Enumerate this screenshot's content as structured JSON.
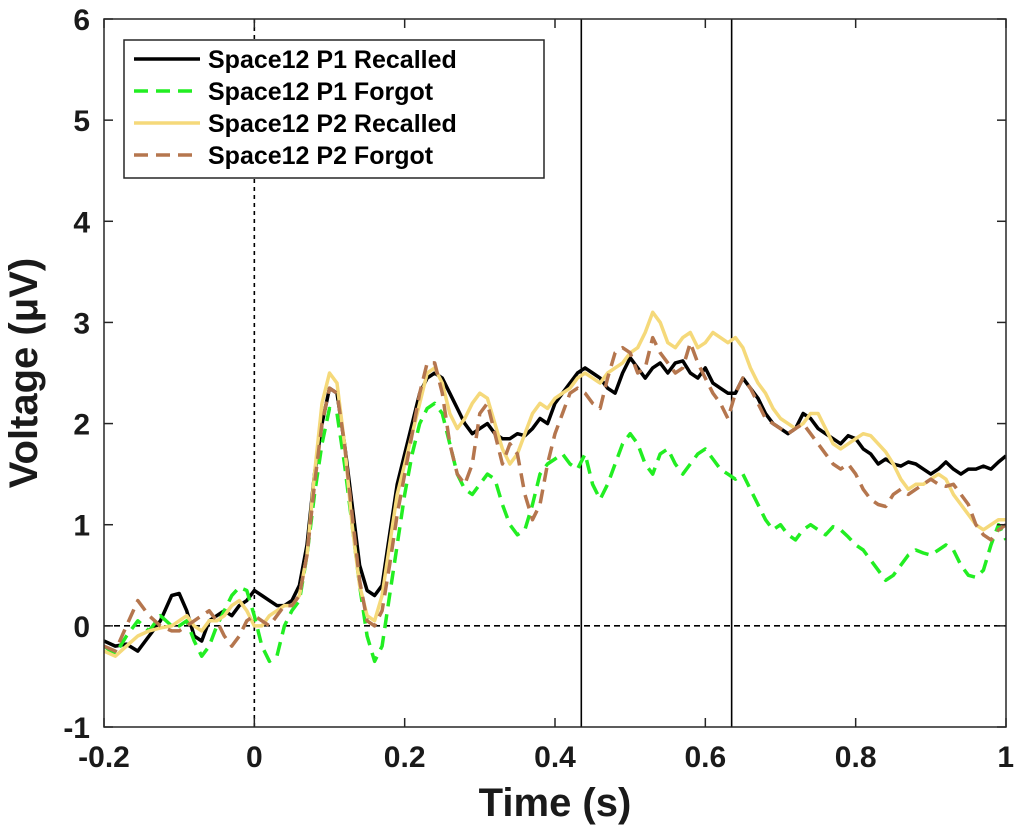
{
  "chart_data": {
    "type": "line",
    "title": "",
    "xlabel": "Time (s)",
    "ylabel": "Voltage (μV)",
    "xlim": [
      -0.2,
      1.0
    ],
    "ylim": [
      -1,
      6
    ],
    "xticks": [
      -0.2,
      0,
      0.2,
      0.4,
      0.6,
      0.8,
      1
    ],
    "xtick_labels": [
      "-0.2",
      "0",
      "0.2",
      "0.4",
      "0.6",
      "0.8",
      "1"
    ],
    "yticks": [
      -1,
      0,
      1,
      2,
      3,
      4,
      5,
      6
    ],
    "ytick_labels": [
      "-1",
      "0",
      "1",
      "2",
      "3",
      "4",
      "5",
      "6"
    ],
    "grid": false,
    "legend_position": "top-left",
    "reference_lines": [
      {
        "orientation": "vertical",
        "value": 0,
        "style": "dotted",
        "color": "#000000"
      },
      {
        "orientation": "horizontal",
        "value": 0,
        "style": "dashed",
        "color": "#000000"
      },
      {
        "orientation": "vertical",
        "value": 0.435,
        "style": "solid",
        "color": "#000000"
      },
      {
        "orientation": "vertical",
        "value": 0.635,
        "style": "solid",
        "color": "#000000"
      }
    ],
    "series": [
      {
        "name": "Space12 P1 Recalled",
        "color": "#000000",
        "dash": "solid",
        "x": [
          -0.2,
          -0.185,
          -0.17,
          -0.155,
          -0.14,
          -0.125,
          -0.11,
          -0.1,
          -0.09,
          -0.08,
          -0.07,
          -0.06,
          -0.05,
          -0.04,
          -0.03,
          -0.02,
          -0.01,
          0,
          0.01,
          0.02,
          0.03,
          0.04,
          0.05,
          0.06,
          0.07,
          0.08,
          0.09,
          0.1,
          0.11,
          0.12,
          0.13,
          0.14,
          0.15,
          0.16,
          0.17,
          0.18,
          0.19,
          0.2,
          0.21,
          0.22,
          0.23,
          0.24,
          0.25,
          0.26,
          0.27,
          0.28,
          0.29,
          0.3,
          0.31,
          0.32,
          0.33,
          0.34,
          0.35,
          0.36,
          0.37,
          0.38,
          0.39,
          0.4,
          0.41,
          0.42,
          0.43,
          0.44,
          0.45,
          0.46,
          0.47,
          0.48,
          0.49,
          0.5,
          0.51,
          0.52,
          0.53,
          0.54,
          0.55,
          0.56,
          0.57,
          0.58,
          0.59,
          0.6,
          0.61,
          0.62,
          0.63,
          0.64,
          0.65,
          0.66,
          0.67,
          0.68,
          0.69,
          0.7,
          0.71,
          0.72,
          0.73,
          0.74,
          0.75,
          0.76,
          0.77,
          0.78,
          0.79,
          0.8,
          0.81,
          0.82,
          0.83,
          0.84,
          0.85,
          0.86,
          0.87,
          0.88,
          0.89,
          0.9,
          0.91,
          0.92,
          0.93,
          0.94,
          0.95,
          0.96,
          0.97,
          0.98,
          0.99,
          1.0
        ],
        "y": [
          -0.15,
          -0.2,
          -0.18,
          -0.25,
          -0.1,
          0.05,
          0.3,
          0.32,
          0.15,
          -0.1,
          -0.15,
          0.05,
          0.1,
          0.15,
          0.1,
          0.2,
          0.25,
          0.35,
          0.3,
          0.25,
          0.2,
          0.2,
          0.25,
          0.4,
          0.8,
          1.5,
          2.0,
          2.35,
          2.3,
          1.8,
          1.2,
          0.6,
          0.35,
          0.3,
          0.4,
          0.9,
          1.4,
          1.7,
          2.0,
          2.3,
          2.45,
          2.5,
          2.45,
          2.3,
          2.15,
          2.0,
          1.9,
          1.95,
          2.0,
          1.9,
          1.85,
          1.85,
          1.9,
          1.88,
          1.95,
          2.05,
          2.0,
          2.2,
          2.3,
          2.4,
          2.5,
          2.55,
          2.5,
          2.45,
          2.35,
          2.3,
          2.5,
          2.65,
          2.55,
          2.45,
          2.55,
          2.6,
          2.5,
          2.6,
          2.62,
          2.5,
          2.45,
          2.55,
          2.4,
          2.35,
          2.3,
          2.3,
          2.45,
          2.35,
          2.25,
          2.1,
          2.0,
          1.95,
          1.9,
          1.95,
          2.1,
          2.05,
          1.95,
          1.9,
          1.85,
          1.8,
          1.88,
          1.85,
          1.75,
          1.7,
          1.6,
          1.65,
          1.6,
          1.58,
          1.62,
          1.6,
          1.55,
          1.5,
          1.55,
          1.62,
          1.55,
          1.5,
          1.55,
          1.55,
          1.58,
          1.55,
          1.62,
          1.68
        ]
      },
      {
        "name": "Space12 P1 Forgot",
        "color": "#22ee22",
        "dash": "dashed",
        "x": [
          -0.2,
          -0.185,
          -0.17,
          -0.155,
          -0.14,
          -0.125,
          -0.11,
          -0.1,
          -0.09,
          -0.08,
          -0.07,
          -0.06,
          -0.05,
          -0.04,
          -0.03,
          -0.02,
          -0.01,
          0,
          0.01,
          0.02,
          0.03,
          0.04,
          0.05,
          0.06,
          0.07,
          0.08,
          0.09,
          0.1,
          0.11,
          0.12,
          0.13,
          0.14,
          0.15,
          0.16,
          0.17,
          0.18,
          0.19,
          0.2,
          0.21,
          0.22,
          0.23,
          0.24,
          0.25,
          0.26,
          0.27,
          0.28,
          0.29,
          0.3,
          0.31,
          0.32,
          0.33,
          0.34,
          0.35,
          0.36,
          0.37,
          0.38,
          0.39,
          0.4,
          0.41,
          0.42,
          0.43,
          0.44,
          0.45,
          0.46,
          0.47,
          0.48,
          0.49,
          0.5,
          0.51,
          0.52,
          0.53,
          0.54,
          0.55,
          0.56,
          0.57,
          0.58,
          0.59,
          0.6,
          0.61,
          0.62,
          0.63,
          0.64,
          0.65,
          0.66,
          0.67,
          0.68,
          0.69,
          0.7,
          0.71,
          0.72,
          0.73,
          0.74,
          0.75,
          0.76,
          0.77,
          0.78,
          0.79,
          0.8,
          0.81,
          0.82,
          0.83,
          0.84,
          0.85,
          0.86,
          0.87,
          0.88,
          0.89,
          0.9,
          0.91,
          0.92,
          0.93,
          0.94,
          0.95,
          0.96,
          0.97,
          0.98,
          0.99,
          1.0
        ],
        "y": [
          -0.2,
          -0.28,
          -0.1,
          0.05,
          -0.05,
          0.1,
          0.0,
          0.0,
          0.05,
          -0.15,
          -0.3,
          -0.2,
          0.0,
          0.15,
          0.3,
          0.38,
          0.35,
          0.1,
          -0.2,
          -0.35,
          -0.3,
          0.0,
          0.15,
          0.25,
          0.7,
          1.3,
          1.8,
          2.15,
          2.1,
          1.6,
          1.0,
          0.4,
          -0.1,
          -0.35,
          -0.2,
          0.3,
          0.8,
          1.3,
          1.7,
          2.0,
          2.15,
          2.2,
          2.1,
          1.8,
          1.5,
          1.35,
          1.3,
          1.4,
          1.5,
          1.45,
          1.2,
          1.0,
          0.9,
          0.95,
          1.2,
          1.5,
          1.6,
          1.65,
          1.7,
          1.6,
          1.55,
          1.7,
          1.4,
          1.25,
          1.4,
          1.6,
          1.8,
          1.9,
          1.8,
          1.6,
          1.5,
          1.7,
          1.75,
          1.6,
          1.5,
          1.6,
          1.7,
          1.75,
          1.65,
          1.55,
          1.5,
          1.45,
          1.5,
          1.35,
          1.2,
          1.05,
          0.95,
          1.0,
          0.9,
          0.85,
          0.95,
          1.0,
          0.95,
          0.9,
          0.98,
          0.95,
          0.88,
          0.8,
          0.75,
          0.65,
          0.55,
          0.45,
          0.5,
          0.6,
          0.7,
          0.75,
          0.72,
          0.7,
          0.75,
          0.8,
          0.75,
          0.6,
          0.5,
          0.48,
          0.55,
          0.8,
          1.0,
          0.85
        ]
      },
      {
        "name": "Space12 P2 Recalled",
        "color": "#f5d97a",
        "dash": "solid",
        "x": [
          -0.2,
          -0.185,
          -0.17,
          -0.155,
          -0.14,
          -0.125,
          -0.11,
          -0.1,
          -0.09,
          -0.08,
          -0.07,
          -0.06,
          -0.05,
          -0.04,
          -0.03,
          -0.02,
          -0.01,
          0,
          0.01,
          0.02,
          0.03,
          0.04,
          0.05,
          0.06,
          0.07,
          0.08,
          0.09,
          0.1,
          0.11,
          0.12,
          0.13,
          0.14,
          0.15,
          0.16,
          0.17,
          0.18,
          0.19,
          0.2,
          0.21,
          0.22,
          0.23,
          0.24,
          0.25,
          0.26,
          0.27,
          0.28,
          0.29,
          0.3,
          0.31,
          0.32,
          0.33,
          0.34,
          0.35,
          0.36,
          0.37,
          0.38,
          0.39,
          0.4,
          0.41,
          0.42,
          0.43,
          0.44,
          0.45,
          0.46,
          0.47,
          0.48,
          0.49,
          0.5,
          0.51,
          0.52,
          0.53,
          0.54,
          0.55,
          0.56,
          0.57,
          0.58,
          0.59,
          0.6,
          0.61,
          0.62,
          0.63,
          0.64,
          0.65,
          0.66,
          0.67,
          0.68,
          0.69,
          0.7,
          0.71,
          0.72,
          0.73,
          0.74,
          0.75,
          0.76,
          0.77,
          0.78,
          0.79,
          0.8,
          0.81,
          0.82,
          0.83,
          0.84,
          0.85,
          0.86,
          0.87,
          0.88,
          0.89,
          0.9,
          0.91,
          0.92,
          0.93,
          0.94,
          0.95,
          0.96,
          0.97,
          0.98,
          0.99,
          1.0
        ],
        "y": [
          -0.25,
          -0.3,
          -0.2,
          -0.1,
          -0.05,
          -0.02,
          0.0,
          0.05,
          0.1,
          0.0,
          -0.05,
          0.05,
          0.05,
          0.1,
          0.2,
          0.25,
          0.15,
          0.0,
          0.0,
          0.1,
          0.15,
          0.2,
          0.2,
          0.3,
          0.7,
          1.5,
          2.2,
          2.5,
          2.4,
          1.8,
          1.0,
          0.4,
          0.1,
          0.05,
          0.3,
          0.8,
          1.3,
          1.6,
          1.9,
          2.2,
          2.5,
          2.55,
          2.4,
          2.1,
          1.95,
          2.05,
          2.2,
          2.3,
          2.25,
          2.0,
          1.75,
          1.6,
          1.7,
          1.9,
          2.1,
          2.2,
          2.15,
          2.25,
          2.3,
          2.35,
          2.45,
          2.5,
          2.45,
          2.4,
          2.5,
          2.55,
          2.6,
          2.7,
          2.75,
          2.9,
          3.1,
          3.0,
          2.8,
          2.75,
          2.85,
          2.9,
          2.75,
          2.8,
          2.9,
          2.85,
          2.8,
          2.85,
          2.75,
          2.55,
          2.4,
          2.3,
          2.15,
          2.05,
          2.0,
          1.95,
          2.0,
          2.1,
          2.1,
          1.95,
          1.8,
          1.75,
          1.8,
          1.85,
          1.9,
          1.88,
          1.8,
          1.72,
          1.6,
          1.45,
          1.35,
          1.4,
          1.4,
          1.45,
          1.5,
          1.45,
          1.3,
          1.2,
          1.1,
          1.0,
          0.95,
          1.0,
          1.05,
          1.05
        ]
      },
      {
        "name": "Space12 P2 Forgot",
        "color": "#b5764e",
        "dash": "dashed",
        "x": [
          -0.2,
          -0.185,
          -0.17,
          -0.155,
          -0.14,
          -0.125,
          -0.11,
          -0.1,
          -0.09,
          -0.08,
          -0.07,
          -0.06,
          -0.05,
          -0.04,
          -0.03,
          -0.02,
          -0.01,
          0,
          0.01,
          0.02,
          0.03,
          0.04,
          0.05,
          0.06,
          0.07,
          0.08,
          0.09,
          0.1,
          0.11,
          0.12,
          0.13,
          0.14,
          0.15,
          0.16,
          0.17,
          0.18,
          0.19,
          0.2,
          0.21,
          0.22,
          0.23,
          0.24,
          0.25,
          0.26,
          0.27,
          0.28,
          0.29,
          0.3,
          0.31,
          0.32,
          0.33,
          0.34,
          0.35,
          0.36,
          0.37,
          0.38,
          0.39,
          0.4,
          0.41,
          0.42,
          0.43,
          0.44,
          0.45,
          0.46,
          0.47,
          0.48,
          0.49,
          0.5,
          0.51,
          0.52,
          0.53,
          0.54,
          0.55,
          0.56,
          0.57,
          0.58,
          0.59,
          0.6,
          0.61,
          0.62,
          0.63,
          0.64,
          0.65,
          0.66,
          0.67,
          0.68,
          0.69,
          0.7,
          0.71,
          0.72,
          0.73,
          0.74,
          0.75,
          0.76,
          0.77,
          0.78,
          0.79,
          0.8,
          0.81,
          0.82,
          0.83,
          0.84,
          0.85,
          0.86,
          0.87,
          0.88,
          0.89,
          0.9,
          0.91,
          0.92,
          0.93,
          0.94,
          0.95,
          0.96,
          0.97,
          0.98,
          0.99,
          1.0
        ],
        "y": [
          -0.2,
          -0.25,
          0.0,
          0.25,
          0.1,
          0.0,
          -0.05,
          -0.05,
          0.0,
          0.05,
          0.1,
          0.15,
          0.05,
          -0.1,
          -0.2,
          -0.1,
          0.05,
          0.1,
          0.05,
          0.0,
          0.1,
          0.2,
          0.2,
          0.3,
          0.7,
          1.4,
          2.0,
          2.35,
          2.3,
          1.8,
          1.1,
          0.45,
          0.05,
          0.0,
          0.15,
          0.6,
          1.1,
          1.5,
          1.9,
          2.3,
          2.6,
          2.6,
          2.3,
          1.8,
          1.5,
          1.4,
          1.6,
          2.1,
          2.2,
          1.9,
          1.6,
          1.8,
          1.7,
          1.3,
          1.05,
          1.2,
          1.6,
          1.9,
          2.1,
          2.3,
          2.35,
          2.3,
          2.2,
          2.15,
          2.45,
          2.7,
          2.75,
          2.7,
          2.5,
          2.55,
          2.85,
          2.7,
          2.6,
          2.5,
          2.55,
          2.8,
          2.6,
          2.45,
          2.3,
          2.2,
          2.05,
          2.3,
          2.45,
          2.35,
          2.2,
          2.05,
          2.0,
          1.95,
          1.9,
          1.95,
          2.0,
          1.9,
          1.8,
          1.7,
          1.6,
          1.55,
          1.6,
          1.5,
          1.35,
          1.25,
          1.2,
          1.18,
          1.3,
          1.35,
          1.3,
          1.35,
          1.4,
          1.45,
          1.4,
          1.38,
          1.4,
          1.3,
          1.2,
          1.0,
          0.9,
          0.85,
          0.95,
          1.0
        ]
      }
    ]
  }
}
